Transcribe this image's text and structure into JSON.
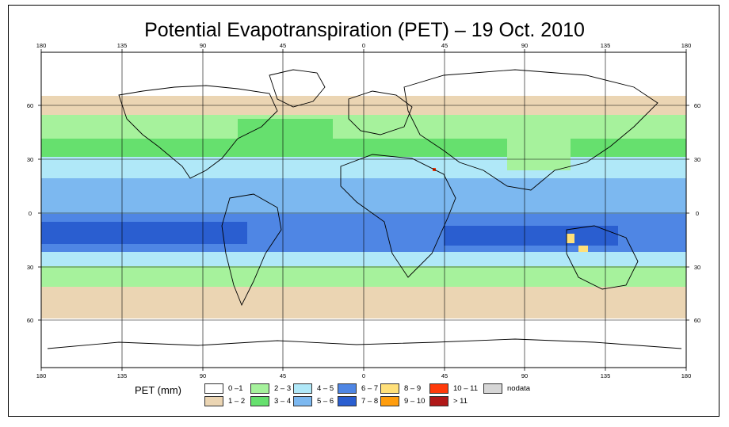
{
  "title": "Potential Evapotranspiration (PET) – 19 Oct. 2010",
  "axes": {
    "lon_labels": [
      "180",
      "135",
      "90",
      "45",
      "0",
      "45",
      "90",
      "135",
      "180"
    ],
    "lat_labels": [
      "60",
      "30",
      "0",
      "30",
      "60"
    ]
  },
  "legend": {
    "title": "PET (mm)",
    "items": [
      {
        "label": "0 –1",
        "color": "#ffffff"
      },
      {
        "label": "1 – 2",
        "color": "#ebd5b3"
      },
      {
        "label": "2 – 3",
        "color": "#a6f29c"
      },
      {
        "label": "3 – 4",
        "color": "#66e06e"
      },
      {
        "label": "4 – 5",
        "color": "#b0e8f8"
      },
      {
        "label": "5 – 6",
        "color": "#7cb8f0"
      },
      {
        "label": "6 – 7",
        "color": "#4f86e4"
      },
      {
        "label": "7 – 8",
        "color": "#2a5ed0"
      },
      {
        "label": "8 – 9",
        "color": "#ffe07a"
      },
      {
        "label": "9 – 10",
        "color": "#ff9d0d"
      },
      {
        "label": "10 – 11",
        "color": "#ff3a0a"
      },
      {
        "label": "> 11",
        "color": "#b01818"
      },
      {
        "label": "nodata",
        "color": "#d6d6d6"
      }
    ]
  }
}
